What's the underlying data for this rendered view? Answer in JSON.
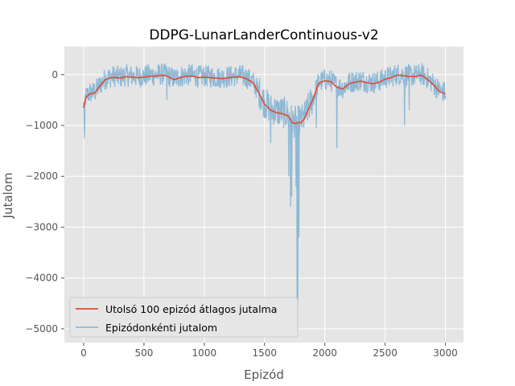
{
  "chart_data": {
    "type": "line",
    "title": "DDPG-LunarLanderContinuous-v2",
    "xlabel": "Epizód",
    "ylabel": "Jutalom",
    "xlim": [
      -160,
      3150
    ],
    "ylim": [
      -5270,
      550
    ],
    "xticks": [
      0,
      500,
      1000,
      1500,
      2000,
      2500,
      3000
    ],
    "yticks": [
      0,
      -1000,
      -2000,
      -3000,
      -4000,
      -5000
    ],
    "xtick_labels": [
      "0",
      "500",
      "1000",
      "1500",
      "2000",
      "2500",
      "3000"
    ],
    "ytick_labels": [
      "0",
      "−1000",
      "−2000",
      "−3000",
      "−4000",
      "−5000"
    ],
    "grid": true,
    "legend_position": "lower-left",
    "series": [
      {
        "name": "Utolsó 100 epizód átlagos jutalma",
        "color": "#e24a33",
        "x": [
          0,
          5,
          15,
          30,
          50,
          80,
          100,
          120,
          150,
          180,
          200,
          230,
          260,
          300,
          350,
          400,
          450,
          500,
          550,
          600,
          650,
          680,
          700,
          750,
          800,
          850,
          900,
          950,
          1000,
          1050,
          1100,
          1150,
          1200,
          1250,
          1300,
          1350,
          1400,
          1450,
          1500,
          1550,
          1600,
          1650,
          1700,
          1730,
          1760,
          1780,
          1800,
          1830,
          1860,
          1900,
          1950,
          2000,
          2050,
          2100,
          2150,
          2200,
          2250,
          2300,
          2350,
          2400,
          2450,
          2500,
          2550,
          2600,
          2650,
          2700,
          2750,
          2800,
          2850,
          2900,
          2950,
          3000
        ],
        "y": [
          -650,
          -560,
          -480,
          -420,
          -380,
          -370,
          -340,
          -270,
          -180,
          -100,
          -80,
          -60,
          -55,
          -70,
          -40,
          -50,
          -60,
          -50,
          -30,
          -30,
          -10,
          -20,
          -40,
          -100,
          -60,
          -30,
          -30,
          -60,
          -50,
          -60,
          -70,
          -80,
          -60,
          -50,
          -40,
          -80,
          -150,
          -350,
          -580,
          -700,
          -750,
          -770,
          -820,
          -950,
          -960,
          -940,
          -950,
          -870,
          -700,
          -500,
          -170,
          -120,
          -140,
          -250,
          -280,
          -180,
          -150,
          -130,
          -160,
          -180,
          -150,
          -90,
          -60,
          -10,
          -20,
          -40,
          -40,
          -10,
          -90,
          -200,
          -330,
          -380
        ]
      },
      {
        "name": "Epizódonkénti jutalom",
        "color": "#8eb9d5",
        "x": [],
        "y": []
      }
    ]
  }
}
